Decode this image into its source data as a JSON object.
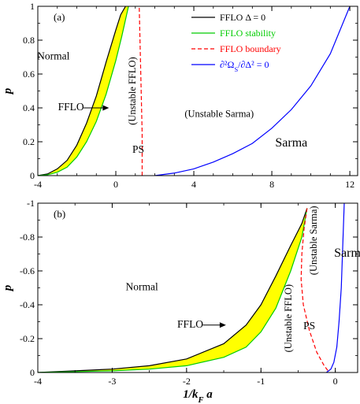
{
  "chart_data": [
    {
      "type": "line",
      "panel_label": "(a)",
      "xlabel": "",
      "ylabel": "p",
      "xlim": [
        -4,
        12.4
      ],
      "ylim": [
        0,
        1
      ],
      "xticks": [
        "-4",
        "0",
        "4",
        "8",
        "12"
      ],
      "yticks": [
        "0",
        "0.2",
        "0.4",
        "0.6",
        "0.8",
        "1"
      ],
      "legend_position": "top-right",
      "legend": [
        {
          "label": "FFLO Δ = 0",
          "color": "#000000",
          "dash": "solid"
        },
        {
          "label": "FFLO stability",
          "color": "#00cc00",
          "dash": "solid"
        },
        {
          "label": "FFLO boundary",
          "color": "#ff0000",
          "dash": "dashed"
        },
        {
          "label": "∂²Ω_S/∂Δ² = 0",
          "color": "#0000ff",
          "dash": "solid"
        }
      ],
      "series": [
        {
          "name": "FFLO Δ = 0",
          "color": "#000000",
          "dash": "solid",
          "x": [
            -4.0,
            -3.5,
            -3.0,
            -2.5,
            -2.0,
            -1.5,
            -1.0,
            -0.5,
            0.0,
            0.25,
            0.5
          ],
          "y": [
            0.0,
            0.01,
            0.04,
            0.09,
            0.18,
            0.31,
            0.47,
            0.67,
            0.86,
            0.95,
            1.0
          ]
        },
        {
          "name": "FFLO stability",
          "color": "#00cc00",
          "dash": "solid",
          "x": [
            -4.0,
            -3.5,
            -3.0,
            -2.5,
            -2.0,
            -1.5,
            -1.0,
            -0.5,
            0.0,
            0.3,
            0.65
          ],
          "y": [
            0.0,
            0.005,
            0.02,
            0.05,
            0.11,
            0.2,
            0.32,
            0.48,
            0.68,
            0.82,
            1.0
          ]
        },
        {
          "name": "FFLO boundary",
          "color": "#ff0000",
          "dash": "dashed",
          "x": [
            1.35,
            1.35,
            1.3,
            1.25,
            1.2
          ],
          "y": [
            0.0,
            0.25,
            0.5,
            0.75,
            1.0
          ]
        },
        {
          "name": "∂²Ω_S/∂Δ² = 0",
          "color": "#0000ff",
          "dash": "solid",
          "x": [
            2.0,
            3.0,
            4.0,
            5.0,
            6.0,
            7.0,
            8.0,
            9.0,
            10.0,
            11.0,
            12.0
          ],
          "y": [
            0.0,
            0.015,
            0.04,
            0.08,
            0.13,
            0.19,
            0.28,
            0.39,
            0.53,
            0.72,
            1.0
          ]
        }
      ],
      "fill": {
        "color": "#ffff00",
        "between": [
          "FFLO Δ = 0",
          "FFLO stability"
        ]
      },
      "annotations": [
        {
          "text": "Normal",
          "x": -3.2,
          "y": 0.7
        },
        {
          "text": "FFLO",
          "x": -2.3,
          "y": 0.4,
          "arrow_to": [
            -0.35,
            0.4
          ]
        },
        {
          "text": "(Unstable FFLO)",
          "x": 0.9,
          "y": 0.5,
          "rotate": -90
        },
        {
          "text": "(Unstable Sarma)",
          "x": 5.3,
          "y": 0.36
        },
        {
          "text": "PS",
          "x": 1.15,
          "y": 0.15
        },
        {
          "text": "Sarma",
          "x": 9.0,
          "y": 0.19
        }
      ]
    },
    {
      "type": "line",
      "panel_label": "(b)",
      "xlabel": "1/k_F a",
      "ylabel": "p",
      "xlim": [
        -4,
        0.3
      ],
      "ylim": [
        0,
        -1
      ],
      "xticks": [
        "-4",
        "-3",
        "-2",
        "-1",
        "0"
      ],
      "yticks": [
        "0",
        "-0.2",
        "-0.4",
        "-0.6",
        "-0.8",
        "-1"
      ],
      "series": [
        {
          "name": "FFLO Δ = 0",
          "color": "#000000",
          "dash": "solid",
          "x": [
            -4.0,
            -3.5,
            -3.0,
            -2.5,
            -2.0,
            -1.5,
            -1.2,
            -1.0,
            -0.8,
            -0.6,
            -0.45,
            -0.38
          ],
          "y": [
            0.0,
            -0.01,
            -0.02,
            -0.04,
            -0.08,
            -0.17,
            -0.28,
            -0.4,
            -0.57,
            -0.75,
            -0.88,
            -0.97
          ]
        },
        {
          "name": "FFLO stability",
          "color": "#00cc00",
          "dash": "solid",
          "x": [
            -4.0,
            -3.5,
            -3.0,
            -2.5,
            -2.0,
            -1.5,
            -1.2,
            -1.0,
            -0.8,
            -0.6,
            -0.45,
            -0.38
          ],
          "y": [
            0.0,
            -0.005,
            -0.01,
            -0.02,
            -0.04,
            -0.09,
            -0.15,
            -0.24,
            -0.38,
            -0.6,
            -0.8,
            -0.97
          ]
        },
        {
          "name": "FFLO boundary",
          "color": "#ff0000",
          "dash": "dashed",
          "x": [
            -0.38,
            -0.42,
            -0.45,
            -0.46,
            -0.43,
            -0.35,
            -0.25,
            -0.15,
            -0.08
          ],
          "y": [
            -0.97,
            -0.85,
            -0.7,
            -0.55,
            -0.4,
            -0.25,
            -0.12,
            -0.04,
            0.0
          ]
        },
        {
          "name": "∂²Ω_S/∂Δ² = 0",
          "color": "#0000ff",
          "dash": "solid",
          "x": [
            -0.12,
            -0.06,
            -0.02,
            0.02,
            0.05,
            0.08,
            0.1,
            0.12
          ],
          "y": [
            0.0,
            -0.02,
            -0.06,
            -0.15,
            -0.3,
            -0.5,
            -0.75,
            -1.0
          ]
        }
      ],
      "fill": {
        "color": "#ffff00",
        "between": [
          "FFLO Δ = 0",
          "FFLO stability"
        ]
      },
      "annotations": [
        {
          "text": "Normal",
          "x": -2.6,
          "y": -0.5
        },
        {
          "text": "FFLO",
          "x": -1.95,
          "y": -0.28,
          "arrow_to": [
            -1.47,
            -0.28
          ]
        },
        {
          "text": "(Unstable FFLO)",
          "x": -0.62,
          "y": -0.32,
          "rotate": -90
        },
        {
          "text": "(Unstable Sarma)",
          "x": -0.28,
          "y": -0.78,
          "rotate": -90
        },
        {
          "text": "PS",
          "x": -0.35,
          "y": -0.27
        },
        {
          "text": "Sarma",
          "x": 0.2,
          "y": -0.7
        }
      ]
    }
  ]
}
